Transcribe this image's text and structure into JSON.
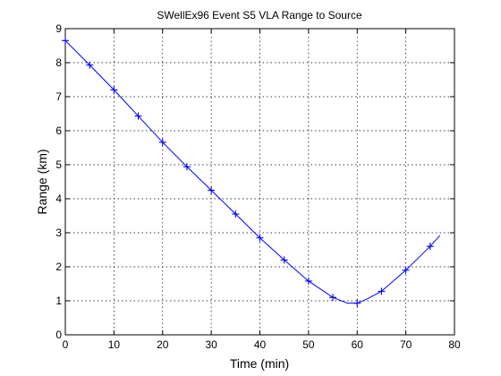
{
  "chart_data": {
    "type": "line",
    "title": "SWellEx96 Event S5 VLA Range to Source",
    "xlabel": "Time (min)",
    "ylabel": "Range (km)",
    "xlim": [
      0,
      80
    ],
    "ylim": [
      0,
      9
    ],
    "xticks": [
      0,
      10,
      20,
      30,
      40,
      50,
      60,
      70,
      80
    ],
    "yticks": [
      0,
      1,
      2,
      3,
      4,
      5,
      6,
      7,
      8,
      9
    ],
    "grid": true,
    "line_color": "#0000ff",
    "marker": "+",
    "series": [
      {
        "style": "line",
        "x": [
          0,
          5,
          10,
          15,
          20,
          25,
          30,
          35,
          40,
          45,
          50,
          55,
          58,
          60,
          62,
          65,
          70,
          75,
          77
        ],
        "y": [
          8.65,
          7.93,
          7.2,
          6.43,
          5.66,
          4.94,
          4.25,
          3.55,
          2.85,
          2.2,
          1.58,
          1.1,
          0.93,
          0.93,
          1.05,
          1.28,
          1.9,
          2.6,
          2.92
        ]
      },
      {
        "style": "markers",
        "x": [
          0,
          5,
          10,
          15,
          20,
          25,
          30,
          35,
          40,
          45,
          50,
          55,
          60,
          65,
          70,
          75
        ],
        "y": [
          8.65,
          7.93,
          7.2,
          6.43,
          5.66,
          4.94,
          4.25,
          3.55,
          2.85,
          2.2,
          1.58,
          1.1,
          0.93,
          1.28,
          1.9,
          2.6
        ]
      }
    ]
  }
}
